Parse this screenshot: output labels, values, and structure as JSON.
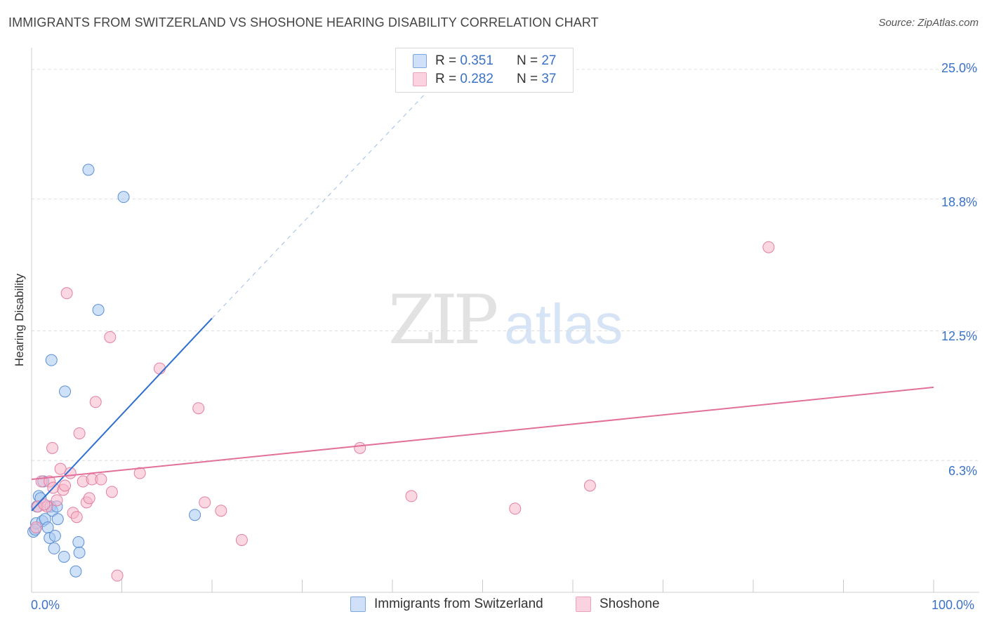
{
  "header": {
    "title": "IMMIGRANTS FROM SWITZERLAND VS SHOSHONE HEARING DISABILITY CORRELATION CHART",
    "source": "Source: ZipAtlas.com"
  },
  "watermark": {
    "zip": "ZIP",
    "atlas": "atlas"
  },
  "legend_top": {
    "rows": [
      {
        "r_label": "R =",
        "r_value": "0.351",
        "n_label": "N =",
        "n_value": "27",
        "color": "#a8c8f0"
      },
      {
        "r_label": "R =",
        "r_value": "0.282",
        "n_label": "N =",
        "n_value": "37",
        "color": "#f7b7cb"
      }
    ]
  },
  "legend_bottom": {
    "items": [
      {
        "label": "Immigrants from Switzerland",
        "color": "#a8c8f0"
      },
      {
        "label": "Shoshone",
        "color": "#f7b7cb"
      }
    ]
  },
  "chart_data": {
    "type": "scatter",
    "title": "IMMIGRANTS FROM SWITZERLAND VS SHOSHONE HEARING DISABILITY CORRELATION CHART",
    "xlabel": "",
    "ylabel": "Hearing Disability",
    "xlim": [
      0,
      100
    ],
    "ylim": [
      0,
      25.7
    ],
    "x_tick_labels": [
      "0.0%",
      "100.0%"
    ],
    "y_ticks": [
      6.3,
      12.5,
      18.8,
      25.0
    ],
    "y_tick_labels": [
      "6.3%",
      "12.5%",
      "18.8%",
      "25.0%"
    ],
    "grid": true,
    "legend_position": "top-center",
    "series": [
      {
        "name": "Immigrants from Switzerland",
        "color": "#a8c8f0",
        "stroke": "#5b8fd6",
        "line_color": "#2e6fcf",
        "trend": {
          "x": [
            0.0,
            20.0
          ],
          "y": [
            3.9,
            13.1
          ],
          "dashed_extension_to": [
            44.0,
            24.0
          ]
        },
        "points": [
          [
            0.2,
            2.9
          ],
          [
            0.5,
            3.3
          ],
          [
            0.6,
            4.1
          ],
          [
            0.8,
            4.6
          ],
          [
            1.0,
            4.5
          ],
          [
            1.2,
            3.4
          ],
          [
            1.3,
            5.3
          ],
          [
            1.5,
            3.5
          ],
          [
            1.8,
            3.1
          ],
          [
            2.0,
            2.6
          ],
          [
            2.1,
            4.1
          ],
          [
            2.3,
            3.9
          ],
          [
            2.5,
            2.1
          ],
          [
            2.6,
            2.7
          ],
          [
            2.8,
            4.1
          ],
          [
            2.9,
            3.5
          ],
          [
            3.6,
            1.7
          ],
          [
            4.9,
            1.0
          ],
          [
            5.2,
            2.4
          ],
          [
            5.3,
            1.9
          ],
          [
            2.2,
            11.1
          ],
          [
            3.7,
            9.6
          ],
          [
            7.4,
            13.5
          ],
          [
            6.3,
            20.2
          ],
          [
            10.2,
            18.9
          ],
          [
            18.1,
            3.7
          ],
          [
            0.4,
            3.0
          ]
        ]
      },
      {
        "name": "Shoshone",
        "color": "#f7b7cb",
        "stroke": "#e27fa0",
        "line_color": "#e2709a",
        "trend": {
          "x": [
            0.0,
            100.0
          ],
          "y": [
            5.4,
            9.8
          ]
        },
        "points": [
          [
            0.5,
            3.1
          ],
          [
            0.7,
            4.1
          ],
          [
            1.1,
            5.3
          ],
          [
            1.7,
            4.1
          ],
          [
            2.0,
            5.3
          ],
          [
            2.3,
            6.9
          ],
          [
            2.4,
            5.0
          ],
          [
            2.8,
            4.4
          ],
          [
            3.2,
            5.9
          ],
          [
            3.5,
            4.9
          ],
          [
            3.7,
            5.1
          ],
          [
            3.9,
            14.3
          ],
          [
            4.3,
            5.7
          ],
          [
            4.6,
            3.8
          ],
          [
            5.0,
            3.6
          ],
          [
            5.3,
            7.6
          ],
          [
            5.7,
            5.3
          ],
          [
            6.1,
            4.3
          ],
          [
            6.4,
            4.5
          ],
          [
            6.7,
            5.4
          ],
          [
            7.1,
            9.1
          ],
          [
            7.7,
            5.4
          ],
          [
            8.7,
            12.2
          ],
          [
            8.9,
            4.8
          ],
          [
            9.5,
            0.8
          ],
          [
            12.0,
            5.7
          ],
          [
            14.2,
            10.7
          ],
          [
            18.5,
            8.8
          ],
          [
            19.2,
            4.3
          ],
          [
            21.0,
            3.9
          ],
          [
            23.3,
            2.5
          ],
          [
            36.4,
            6.9
          ],
          [
            42.1,
            4.6
          ],
          [
            53.6,
            4.0
          ],
          [
            61.9,
            5.1
          ],
          [
            81.7,
            16.5
          ],
          [
            1.4,
            4.2
          ]
        ]
      }
    ]
  }
}
